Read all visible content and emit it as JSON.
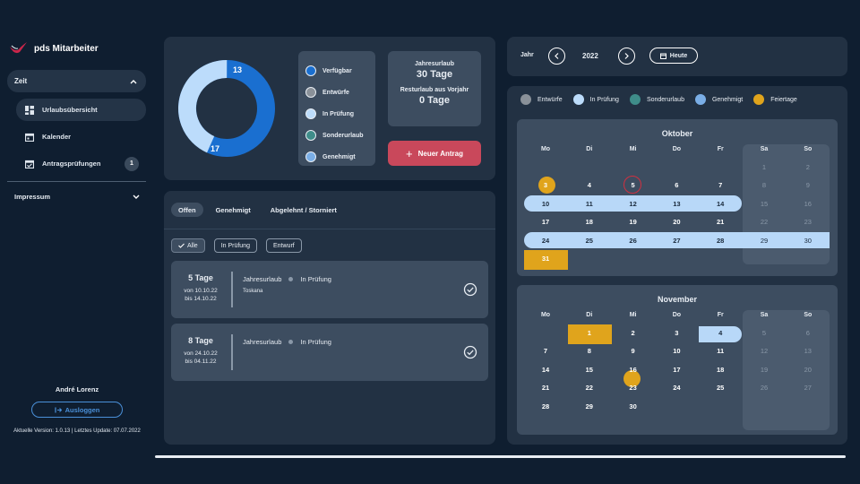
{
  "app": {
    "title": "pds Mitarbeiter"
  },
  "sidebar": {
    "group_label": "Zeit",
    "items": [
      {
        "label": "Urlaubsübersicht",
        "icon": "dashboard-icon"
      },
      {
        "label": "Kalender",
        "icon": "calendar-icon"
      },
      {
        "label": "Antragsprüfungen",
        "icon": "calendar-check-icon",
        "badge": "1"
      }
    ],
    "impressum": "Impressum",
    "user": "André Lorenz",
    "logout": "Ausloggen",
    "version": "Aktuelle Version: 1.0.13 | Letztes Update: 07.07.2022"
  },
  "stats": {
    "donut": {
      "available": 17,
      "planned": 13
    },
    "donut_labels": {
      "top": "13",
      "bottom": "17"
    },
    "legend": [
      {
        "label": "Verfügbar",
        "color": "#1a6fd0"
      },
      {
        "label": "Entwürfe",
        "color": "#8a9199"
      },
      {
        "label": "In Prüfung",
        "color": "#bcdcfb"
      },
      {
        "label": "Sonderurlaub",
        "color": "#3f8d8a"
      },
      {
        "label": "Genehmigt",
        "color": "#7aaee6"
      }
    ],
    "annual_label": "Jahresurlaub",
    "annual_value": "30 Tage",
    "carry_label": "Resturlaub aus Vorjahr",
    "carry_value": "0 Tage",
    "new_button": "Neuer Antrag"
  },
  "requests": {
    "tabs": [
      "Offen",
      "Genehmigt",
      "Abgelehnt / Storniert"
    ],
    "filters": [
      "Alle",
      "In Prüfung",
      "Entwurf"
    ],
    "items": [
      {
        "days": "5 Tage",
        "from": "von 10.10.22",
        "to": "bis 14.10.22",
        "type": "Jahresurlaub",
        "status": "In Prüfung",
        "note": "Toskana"
      },
      {
        "days": "8 Tage",
        "from": "von 24.10.22",
        "to": "bis 04.11.22",
        "type": "Jahresurlaub",
        "status": "In Prüfung",
        "note": ""
      }
    ]
  },
  "year_nav": {
    "label": "Jahr",
    "year": "2022",
    "today": "Heute"
  },
  "calendar": {
    "legend": [
      {
        "label": "Entwürfe",
        "color": "#8a9199"
      },
      {
        "label": "In Prüfung",
        "color": "#bcdcfb"
      },
      {
        "label": "Sonderurlaub",
        "color": "#3f8d8a"
      },
      {
        "label": "Genehmigt",
        "color": "#7aaee6"
      },
      {
        "label": "Feiertage",
        "color": "#e0a41c"
      }
    ],
    "weekdays": [
      "Mo",
      "Di",
      "Mi",
      "Do",
      "Fr",
      "Sa",
      "So"
    ],
    "months": [
      {
        "name": "Oktober",
        "weeks": [
          [
            "",
            "",
            "",
            "",
            "",
            "1",
            "2"
          ],
          [
            "3",
            "4",
            "5",
            "6",
            "7",
            "8",
            "9"
          ],
          [
            "10",
            "11",
            "12",
            "13",
            "14",
            "15",
            "16"
          ],
          [
            "17",
            "18",
            "19",
            "20",
            "21",
            "22",
            "23"
          ],
          [
            "24",
            "25",
            "26",
            "27",
            "28",
            "29",
            "30"
          ],
          [
            "31",
            "",
            "",
            "",
            "",
            "",
            ""
          ]
        ]
      },
      {
        "name": "November",
        "weeks": [
          [
            "",
            "1",
            "2",
            "3",
            "4",
            "5",
            "6"
          ],
          [
            "7",
            "8",
            "9",
            "10",
            "11",
            "12",
            "13"
          ],
          [
            "14",
            "15",
            "16",
            "17",
            "18",
            "19",
            "20"
          ],
          [
            "21",
            "22",
            "23",
            "24",
            "25",
            "26",
            "27"
          ],
          [
            "28",
            "29",
            "30",
            "",
            "",
            "",
            ""
          ]
        ]
      }
    ]
  }
}
